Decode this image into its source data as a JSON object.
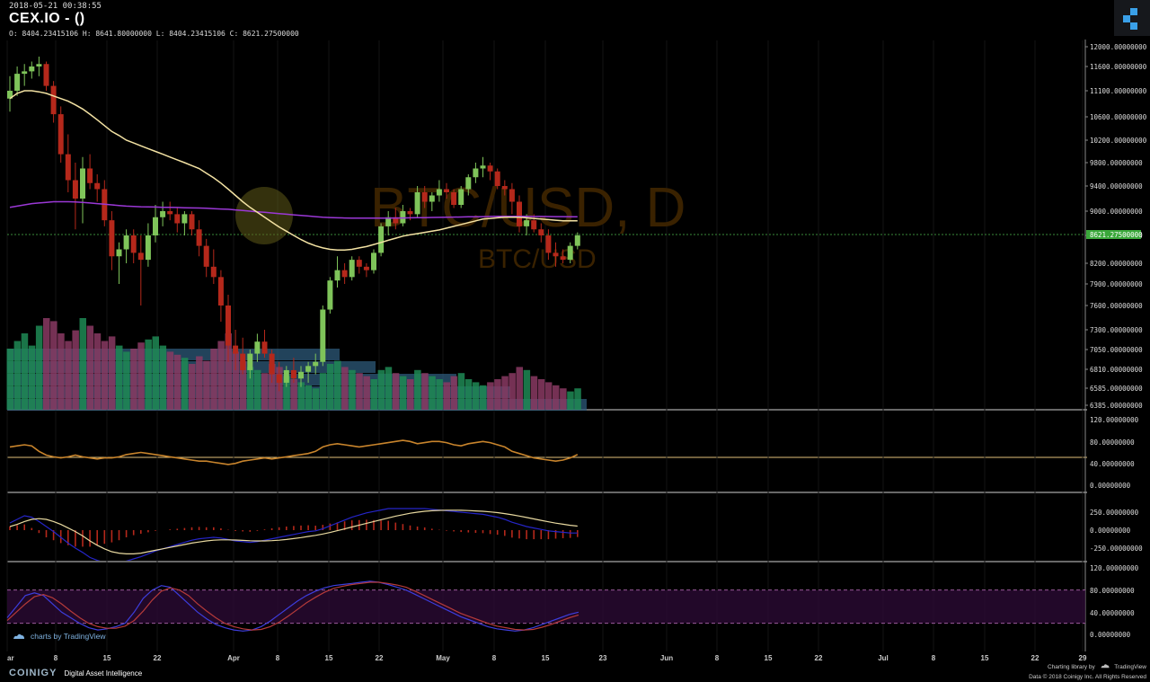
{
  "header": {
    "date": "2018-05-21 00:38:55",
    "title": "CEX.IO -  ()",
    "ohlc": "O: 8404.23415106 H: 8641.80000000 L: 8404.23415106 C: 8621.27500000"
  },
  "colors": {
    "up": "#7fc45a",
    "down": "#b5281b",
    "ema_fast": "#f3e2a3",
    "ema_slow": "#9b38d6",
    "rsi": "#c8842c",
    "macd": "#2525c8",
    "signal": "#e8d9a0",
    "hist": "#b5281b",
    "stoch_k": "#3d3ddc",
    "stoch_d": "#b53a3a",
    "vol_up": "#1e8a55",
    "vol_down": "#8a3a63",
    "vol_prof": "#2e5a7a"
  },
  "watermark": {
    "main": "BTC/USD, D",
    "sub": "BTC/USD"
  },
  "footer": {
    "tv_badge": "charts by TradingView",
    "brand": "COINIGY",
    "tagline": "Digital Asset Intelligence",
    "charting": "Charting library by",
    "tv": "TradingView",
    "copyright": "Data © 2018  Coinigy Inc. All Rights Reserved"
  },
  "chart_data": [
    {
      "type": "candlestick",
      "title": "BTC/USD, D",
      "yticks": [
        "12000.00000000",
        "11600.00000000",
        "11100.00000000",
        "10600.00000000",
        "10200.00000000",
        "9800.00000000",
        "9400.00000000",
        "9000.00000000",
        "8600.00000000",
        "8200.00000000",
        "7900.00000000",
        "7600.00000000",
        "7300.00000000",
        "7050.00000000",
        "6810.00000000",
        "6585.00000000",
        "6385.00000000"
      ],
      "last_price_label": "8621.27500000",
      "xticks": [
        "ar",
        "8",
        "15",
        "22",
        "Apr",
        "8",
        "15",
        "22",
        "May",
        "8",
        "15",
        "23",
        "Jun",
        "8",
        "15",
        "22",
        "Jul",
        "8",
        "15",
        "22",
        "29"
      ],
      "candles": [
        [
          10950,
          11400,
          10700,
          11100
        ],
        [
          11100,
          11600,
          11000,
          11450
        ],
        [
          11450,
          11650,
          11200,
          11500
        ],
        [
          11500,
          11700,
          11350,
          11600
        ],
        [
          11600,
          11800,
          11400,
          11650
        ],
        [
          11650,
          11700,
          11100,
          11200
        ],
        [
          11200,
          11300,
          10500,
          10650
        ],
        [
          10650,
          10800,
          9800,
          9950
        ],
        [
          9950,
          10300,
          9300,
          9500
        ],
        [
          9500,
          9800,
          8700,
          9200
        ],
        [
          9200,
          9900,
          8800,
          9700
        ],
        [
          9700,
          9950,
          9350,
          9450
        ],
        [
          9450,
          9600,
          9150,
          9350
        ],
        [
          9350,
          9500,
          8750,
          8850
        ],
        [
          8850,
          9000,
          8100,
          8300
        ],
        [
          8300,
          8500,
          7900,
          8400
        ],
        [
          8400,
          8700,
          8200,
          8600
        ],
        [
          8600,
          8700,
          8200,
          8350
        ],
        [
          8350,
          8600,
          7600,
          8250
        ],
        [
          8250,
          8800,
          8150,
          8600
        ],
        [
          8600,
          9100,
          8500,
          8900
        ],
        [
          8900,
          9150,
          8750,
          9000
        ],
        [
          9000,
          9150,
          8850,
          8950
        ],
        [
          8950,
          9050,
          8650,
          8800
        ],
        [
          8800,
          9000,
          8600,
          8950
        ],
        [
          8950,
          9000,
          8600,
          8700
        ],
        [
          8700,
          8850,
          8300,
          8450
        ],
        [
          8450,
          8550,
          8000,
          8150
        ],
        [
          8150,
          8400,
          7900,
          8000
        ],
        [
          8000,
          8100,
          7400,
          7600
        ],
        [
          7600,
          7750,
          6900,
          7100
        ],
        [
          7100,
          7300,
          6800,
          7000
        ],
        [
          7000,
          7200,
          6750,
          6800
        ],
        [
          6800,
          7050,
          6700,
          7000
        ],
        [
          7000,
          7250,
          6900,
          7150
        ],
        [
          7150,
          7300,
          6950,
          7000
        ],
        [
          7000,
          7050,
          6650,
          6750
        ],
        [
          6750,
          6900,
          6550,
          6650
        ],
        [
          6650,
          6850,
          6600,
          6800
        ],
        [
          6800,
          6950,
          6650,
          6700
        ],
        [
          6700,
          6850,
          6600,
          6780
        ],
        [
          6780,
          6900,
          6650,
          6850
        ],
        [
          6850,
          7000,
          6750,
          6900
        ],
        [
          6900,
          7600,
          6850,
          7550
        ],
        [
          7550,
          8000,
          7500,
          7950
        ],
        [
          7950,
          8300,
          7850,
          8100
        ],
        [
          8100,
          8200,
          7900,
          8000
        ],
        [
          8000,
          8300,
          7950,
          8250
        ],
        [
          8250,
          8300,
          8050,
          8150
        ],
        [
          8150,
          8200,
          8000,
          8100
        ],
        [
          8100,
          8400,
          8050,
          8350
        ],
        [
          8350,
          8800,
          8300,
          8750
        ],
        [
          8750,
          9000,
          8600,
          8900
        ],
        [
          8900,
          9050,
          8700,
          8800
        ],
        [
          8800,
          9100,
          8750,
          9000
        ],
        [
          9000,
          9050,
          8850,
          8950
        ],
        [
          8950,
          9400,
          8900,
          9300
        ],
        [
          9300,
          9400,
          9050,
          9150
        ],
        [
          9150,
          9300,
          9000,
          9250
        ],
        [
          9250,
          9500,
          9150,
          9350
        ],
        [
          9350,
          9450,
          9200,
          9300
        ],
        [
          9300,
          9350,
          9050,
          9100
        ],
        [
          9100,
          9400,
          9050,
          9350
        ],
        [
          9350,
          9600,
          9250,
          9550
        ],
        [
          9550,
          9800,
          9450,
          9700
        ],
        [
          9700,
          9900,
          9550,
          9750
        ],
        [
          9750,
          9800,
          9500,
          9650
        ],
        [
          9650,
          9700,
          9350,
          9400
        ],
        [
          9400,
          9500,
          9250,
          9350
        ],
        [
          9350,
          9450,
          8950,
          9150
        ],
        [
          9150,
          9250,
          8650,
          8750
        ],
        [
          8750,
          8950,
          8600,
          8850
        ],
        [
          8850,
          8950,
          8650,
          8700
        ],
        [
          8700,
          8800,
          8500,
          8600
        ],
        [
          8600,
          8700,
          8250,
          8350
        ],
        [
          8350,
          8500,
          8150,
          8300
        ],
        [
          8300,
          8400,
          8200,
          8250
        ],
        [
          8250,
          8500,
          8200,
          8450
        ],
        [
          8450,
          8650,
          8400,
          8600
        ]
      ],
      "ema_fast": [
        10950,
        11050,
        11100,
        11100,
        11080,
        11050,
        11000,
        10950,
        10900,
        10830,
        10750,
        10650,
        10550,
        10450,
        10350,
        10280,
        10200,
        10150,
        10100,
        10050,
        10000,
        9950,
        9900,
        9850,
        9800,
        9750,
        9700,
        9620,
        9540,
        9450,
        9350,
        9250,
        9150,
        9060,
        8980,
        8900,
        8820,
        8740,
        8670,
        8600,
        8540,
        8490,
        8450,
        8420,
        8400,
        8390,
        8390,
        8400,
        8420,
        8440,
        8470,
        8500,
        8530,
        8560,
        8590,
        8610,
        8630,
        8650,
        8670,
        8690,
        8720,
        8750,
        8780,
        8810,
        8840,
        8870,
        8880,
        8890,
        8900,
        8900,
        8900,
        8890,
        8880,
        8870,
        8860,
        8850,
        8840,
        8840,
        8840
      ],
      "ema_slow": [
        9060,
        9080,
        9100,
        9120,
        9130,
        9140,
        9150,
        9150,
        9150,
        9145,
        9140,
        9130,
        9120,
        9110,
        9100,
        9090,
        9080,
        9075,
        9070,
        9068,
        9065,
        9062,
        9060,
        9058,
        9055,
        9052,
        9050,
        9045,
        9040,
        9035,
        9030,
        9020,
        9010,
        9000,
        8990,
        8980,
        8970,
        8960,
        8950,
        8940,
        8930,
        8920,
        8910,
        8900,
        8895,
        8890,
        8888,
        8886,
        8885,
        8884,
        8884,
        8885,
        8886,
        8887,
        8888,
        8890,
        8892,
        8894,
        8896,
        8898,
        8900,
        8902,
        8904,
        8906,
        8908,
        8910,
        8912,
        8914,
        8915,
        8915,
        8915,
        8914,
        8913,
        8912,
        8911,
        8910,
        8909,
        8908,
        8908
      ],
      "volume": [
        40,
        45,
        50,
        42,
        55,
        60,
        58,
        50,
        45,
        52,
        60,
        55,
        50,
        45,
        48,
        42,
        38,
        40,
        44,
        46,
        48,
        42,
        38,
        36,
        34,
        30,
        35,
        32,
        40,
        45,
        50,
        38,
        32,
        28,
        26,
        24,
        30,
        28,
        22,
        20,
        18,
        16,
        14,
        24,
        30,
        32,
        28,
        26,
        24,
        22,
        20,
        26,
        28,
        24,
        22,
        20,
        26,
        24,
        22,
        20,
        18,
        22,
        24,
        20,
        18,
        16,
        18,
        20,
        22,
        24,
        28,
        26,
        22,
        20,
        18,
        16,
        14,
        12,
        14
      ]
    },
    {
      "type": "line",
      "name": "RSI",
      "yticks": [
        "120.00000000",
        "80.00000000",
        "40.00000000",
        "0.00000000"
      ],
      "values": [
        70,
        72,
        74,
        72,
        62,
        55,
        52,
        50,
        52,
        55,
        52,
        50,
        48,
        50,
        50,
        52,
        56,
        58,
        60,
        58,
        56,
        54,
        52,
        50,
        48,
        46,
        44,
        44,
        42,
        40,
        38,
        40,
        44,
        46,
        48,
        50,
        48,
        50,
        52,
        54,
        56,
        58,
        62,
        70,
        74,
        76,
        74,
        72,
        70,
        72,
        74,
        76,
        78,
        80,
        82,
        80,
        76,
        78,
        80,
        80,
        78,
        74,
        72,
        76,
        78,
        80,
        78,
        74,
        70,
        62,
        58,
        54,
        50,
        48,
        46,
        44,
        46,
        50,
        56
      ]
    },
    {
      "type": "line",
      "name": "MACD",
      "yticks": [
        "250.00000000",
        "0.00000000",
        "-250.00000000"
      ],
      "macd": [
        100,
        150,
        200,
        180,
        120,
        50,
        -20,
        -100,
        -180,
        -250,
        -310,
        -380,
        -420,
        -450,
        -470,
        -460,
        -430,
        -400,
        -370,
        -330,
        -290,
        -260,
        -230,
        -200,
        -170,
        -140,
        -120,
        -110,
        -100,
        -110,
        -130,
        -150,
        -160,
        -170,
        -160,
        -140,
        -120,
        -100,
        -80,
        -60,
        -40,
        -20,
        -10,
        20,
        60,
        100,
        140,
        180,
        210,
        240,
        260,
        280,
        300,
        300,
        300,
        300,
        300,
        300,
        290,
        280,
        270,
        260,
        250,
        240,
        230,
        220,
        200,
        180,
        150,
        110,
        80,
        50,
        30,
        10,
        -10,
        -20,
        -30,
        -40,
        -40
      ],
      "signal": [
        50,
        80,
        120,
        150,
        160,
        150,
        120,
        80,
        30,
        -20,
        -80,
        -150,
        -210,
        -260,
        -300,
        -320,
        -330,
        -330,
        -320,
        -300,
        -280,
        -260,
        -240,
        -220,
        -200,
        -180,
        -165,
        -150,
        -140,
        -135,
        -135,
        -138,
        -142,
        -147,
        -150,
        -150,
        -146,
        -140,
        -130,
        -118,
        -104,
        -88,
        -72,
        -54,
        -32,
        -8,
        18,
        44,
        70,
        95,
        120,
        145,
        170,
        195,
        215,
        235,
        250,
        262,
        270,
        275,
        278,
        278,
        276,
        272,
        268,
        262,
        254,
        244,
        230,
        214,
        196,
        176,
        156,
        136,
        116,
        98,
        82,
        68,
        56
      ],
      "hist": [
        50,
        70,
        80,
        30,
        -40,
        -100,
        -140,
        -180,
        -210,
        -230,
        -230,
        -230,
        -210,
        -190,
        -170,
        -140,
        -100,
        -70,
        -50,
        -30,
        -10,
        0,
        10,
        20,
        30,
        40,
        45,
        40,
        40,
        25,
        5,
        -12,
        -18,
        -23,
        -10,
        10,
        26,
        40,
        50,
        58,
        64,
        68,
        62,
        74,
        92,
        108,
        122,
        136,
        140,
        145,
        140,
        135,
        130,
        105,
        85,
        65,
        50,
        38,
        20,
        5,
        -8,
        -18,
        -26,
        -32,
        -38,
        -42,
        -54,
        -64,
        -80,
        -104,
        -116,
        -126,
        -126,
        -126,
        -126,
        -118,
        -112,
        -108,
        -96
      ]
    },
    {
      "type": "line",
      "name": "Stochastic",
      "yticks": [
        "120.00000000",
        "80.00000000",
        "40.00000000",
        "0.00000000"
      ],
      "k": [
        30,
        50,
        70,
        75,
        70,
        55,
        40,
        30,
        20,
        12,
        8,
        10,
        14,
        20,
        40,
        65,
        80,
        88,
        85,
        70,
        55,
        40,
        28,
        18,
        12,
        8,
        6,
        8,
        14,
        24,
        36,
        48,
        60,
        70,
        78,
        84,
        88,
        90,
        92,
        94,
        96,
        94,
        90,
        85,
        80,
        72,
        64,
        56,
        48,
        40,
        32,
        26,
        20,
        14,
        10,
        8,
        6,
        8,
        12,
        18,
        24,
        30,
        36,
        40
      ],
      "d": [
        25,
        40,
        55,
        68,
        72,
        66,
        55,
        42,
        30,
        20,
        14,
        11,
        11,
        15,
        25,
        42,
        62,
        78,
        84,
        80,
        70,
        55,
        42,
        30,
        20,
        14,
        10,
        8,
        9,
        14,
        22,
        33,
        45,
        57,
        67,
        76,
        83,
        87,
        90,
        92,
        94,
        94,
        92,
        89,
        85,
        78,
        70,
        62,
        54,
        46,
        38,
        32,
        26,
        20,
        15,
        12,
        9,
        8,
        9,
        13,
        18,
        24,
        30,
        35
      ]
    }
  ]
}
